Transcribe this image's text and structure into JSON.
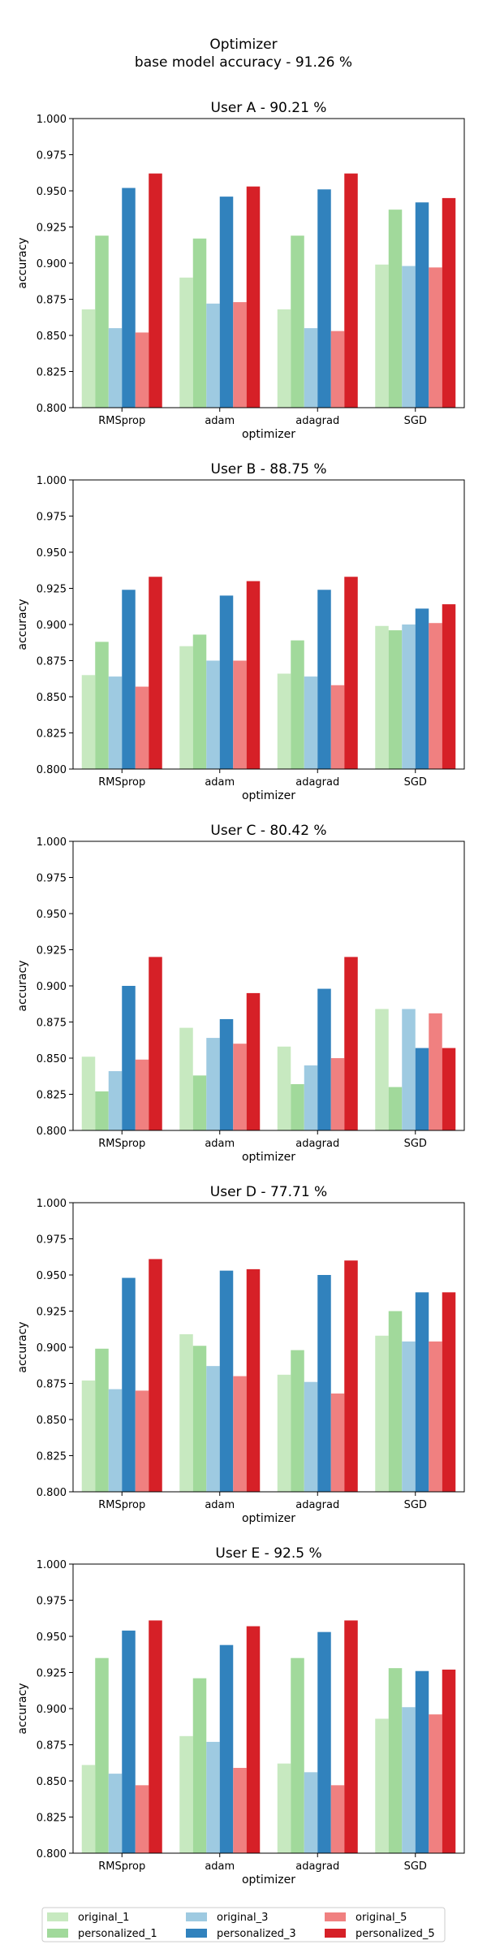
{
  "figure": {
    "suptitle_line1": "Optimizer",
    "suptitle_line2": "base model accuracy - 91.26 %"
  },
  "colors": {
    "original_1": "#c7e9c0",
    "personalized_1": "#a1d99b",
    "original_3": "#9ecae1",
    "personalized_3": "#3182bd",
    "original_5": "#f08080",
    "personalized_5": "#d62027"
  },
  "legend": {
    "entries": [
      "original_1",
      "personalized_1",
      "original_3",
      "personalized_3",
      "original_5",
      "personalized_5"
    ]
  },
  "chart_data": [
    {
      "type": "bar",
      "title": "User A - 90.21 %",
      "xlabel": "optimizer",
      "ylabel": "accuracy",
      "ylim": [
        0.8,
        1.0
      ],
      "yticks": [
        "0.800",
        "0.825",
        "0.850",
        "0.875",
        "0.900",
        "0.925",
        "0.950",
        "0.975",
        "1.000"
      ],
      "categories": [
        "RMSprop",
        "adam",
        "adagrad",
        "SGD"
      ],
      "series": [
        {
          "name": "original_1",
          "values": [
            0.868,
            0.89,
            0.868,
            0.899
          ]
        },
        {
          "name": "personalized_1",
          "values": [
            0.919,
            0.917,
            0.919,
            0.937
          ]
        },
        {
          "name": "original_3",
          "values": [
            0.855,
            0.872,
            0.855,
            0.898
          ]
        },
        {
          "name": "personalized_3",
          "values": [
            0.952,
            0.946,
            0.951,
            0.942
          ]
        },
        {
          "name": "original_5",
          "values": [
            0.852,
            0.873,
            0.853,
            0.897
          ]
        },
        {
          "name": "personalized_5",
          "values": [
            0.962,
            0.953,
            0.962,
            0.945
          ]
        }
      ]
    },
    {
      "type": "bar",
      "title": "User B - 88.75 %",
      "xlabel": "optimizer",
      "ylabel": "accuracy",
      "ylim": [
        0.8,
        1.0
      ],
      "yticks": [
        "0.800",
        "0.825",
        "0.850",
        "0.875",
        "0.900",
        "0.925",
        "0.950",
        "0.975",
        "1.000"
      ],
      "categories": [
        "RMSprop",
        "adam",
        "adagrad",
        "SGD"
      ],
      "series": [
        {
          "name": "original_1",
          "values": [
            0.865,
            0.885,
            0.866,
            0.899
          ]
        },
        {
          "name": "personalized_1",
          "values": [
            0.888,
            0.893,
            0.889,
            0.896
          ]
        },
        {
          "name": "original_3",
          "values": [
            0.864,
            0.875,
            0.864,
            0.9
          ]
        },
        {
          "name": "personalized_3",
          "values": [
            0.924,
            0.92,
            0.924,
            0.911
          ]
        },
        {
          "name": "original_5",
          "values": [
            0.857,
            0.875,
            0.858,
            0.901
          ]
        },
        {
          "name": "personalized_5",
          "values": [
            0.933,
            0.93,
            0.933,
            0.914
          ]
        }
      ]
    },
    {
      "type": "bar",
      "title": "User C - 80.42 %",
      "xlabel": "optimizer",
      "ylabel": "accuracy",
      "ylim": [
        0.8,
        1.0
      ],
      "yticks": [
        "0.800",
        "0.825",
        "0.850",
        "0.875",
        "0.900",
        "0.925",
        "0.950",
        "0.975",
        "1.000"
      ],
      "categories": [
        "RMSprop",
        "adam",
        "adagrad",
        "SGD"
      ],
      "series": [
        {
          "name": "original_1",
          "values": [
            0.851,
            0.871,
            0.858,
            0.884
          ]
        },
        {
          "name": "personalized_1",
          "values": [
            0.827,
            0.838,
            0.832,
            0.83
          ]
        },
        {
          "name": "original_3",
          "values": [
            0.841,
            0.864,
            0.845,
            0.884
          ]
        },
        {
          "name": "personalized_3",
          "values": [
            0.9,
            0.877,
            0.898,
            0.857
          ]
        },
        {
          "name": "original_5",
          "values": [
            0.849,
            0.86,
            0.85,
            0.881
          ]
        },
        {
          "name": "personalized_5",
          "values": [
            0.92,
            0.895,
            0.92,
            0.857
          ]
        }
      ]
    },
    {
      "type": "bar",
      "title": "User D - 77.71 %",
      "xlabel": "optimizer",
      "ylabel": "accuracy",
      "ylim": [
        0.8,
        1.0
      ],
      "yticks": [
        "0.800",
        "0.825",
        "0.850",
        "0.875",
        "0.900",
        "0.925",
        "0.950",
        "0.975",
        "1.000"
      ],
      "categories": [
        "RMSprop",
        "adam",
        "adagrad",
        "SGD"
      ],
      "series": [
        {
          "name": "original_1",
          "values": [
            0.877,
            0.909,
            0.881,
            0.908
          ]
        },
        {
          "name": "personalized_1",
          "values": [
            0.899,
            0.901,
            0.898,
            0.925
          ]
        },
        {
          "name": "original_3",
          "values": [
            0.871,
            0.887,
            0.876,
            0.904
          ]
        },
        {
          "name": "personalized_3",
          "values": [
            0.948,
            0.953,
            0.95,
            0.938
          ]
        },
        {
          "name": "original_5",
          "values": [
            0.87,
            0.88,
            0.868,
            0.904
          ]
        },
        {
          "name": "personalized_5",
          "values": [
            0.961,
            0.954,
            0.96,
            0.938
          ]
        }
      ]
    },
    {
      "type": "bar",
      "title": "User E - 92.5 %",
      "xlabel": "optimizer",
      "ylabel": "accuracy",
      "ylim": [
        0.8,
        1.0
      ],
      "yticks": [
        "0.800",
        "0.825",
        "0.850",
        "0.875",
        "0.900",
        "0.925",
        "0.950",
        "0.975",
        "1.000"
      ],
      "categories": [
        "RMSprop",
        "adam",
        "adagrad",
        "SGD"
      ],
      "series": [
        {
          "name": "original_1",
          "values": [
            0.861,
            0.881,
            0.862,
            0.893
          ]
        },
        {
          "name": "personalized_1",
          "values": [
            0.935,
            0.921,
            0.935,
            0.928
          ]
        },
        {
          "name": "original_3",
          "values": [
            0.855,
            0.877,
            0.856,
            0.901
          ]
        },
        {
          "name": "personalized_3",
          "values": [
            0.954,
            0.944,
            0.953,
            0.926
          ]
        },
        {
          "name": "original_5",
          "values": [
            0.847,
            0.859,
            0.847,
            0.896
          ]
        },
        {
          "name": "personalized_5",
          "values": [
            0.961,
            0.957,
            0.961,
            0.927
          ]
        }
      ]
    }
  ]
}
